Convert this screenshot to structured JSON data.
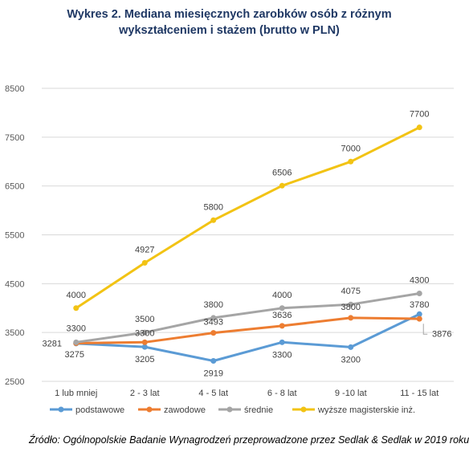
{
  "chart_data": {
    "type": "line",
    "title_lines": [
      "Wykres 2. Mediana miesięcznych zarobków osób z różnym",
      "wykształceniem i stażem (brutto w PLN)"
    ],
    "categories": [
      "1 lub mniej",
      "2 - 3 lat",
      "4 - 5 lat",
      "6 - 8 lat",
      "9 -10 lat",
      "11 - 15 lat"
    ],
    "ylim": [
      2500,
      8500
    ],
    "yticks": [
      "2500",
      "3500",
      "4500",
      "5500",
      "6500",
      "7500",
      "8500"
    ],
    "grid": true,
    "legend_position": "bottom",
    "series": [
      {
        "name": "podstawowe",
        "color": "#5b9bd5",
        "values": [
          3275,
          3205,
          2919,
          3300,
          3200,
          3876
        ],
        "labels": [
          "3275",
          "3205",
          "2919",
          "3300",
          "3200",
          "3876"
        ]
      },
      {
        "name": "zawodowe",
        "color": "#ed7d31",
        "values": [
          3281,
          3300,
          3493,
          3636,
          3800,
          3780
        ],
        "labels": [
          "3281",
          "3300",
          "3493",
          "3636",
          "3800",
          "3780"
        ]
      },
      {
        "name": "średnie",
        "color": "#a5a5a5",
        "values": [
          3300,
          3500,
          3800,
          4000,
          4075,
          4300
        ],
        "labels": [
          "3300",
          "3500",
          "3800",
          "4000",
          "4075",
          "4300"
        ]
      },
      {
        "name": "wyższe magisterskie inż.",
        "color": "#f2c314",
        "values": [
          4000,
          4927,
          5800,
          6506,
          7000,
          7700
        ],
        "labels": [
          "4000",
          "4927",
          "5800",
          "6506",
          "7000",
          "7700"
        ]
      }
    ]
  },
  "source": "Źródło: Ogólnopolskie Badanie Wynagrodzeń przeprowadzone przez Sedlak & Sedlak w 2019 roku"
}
